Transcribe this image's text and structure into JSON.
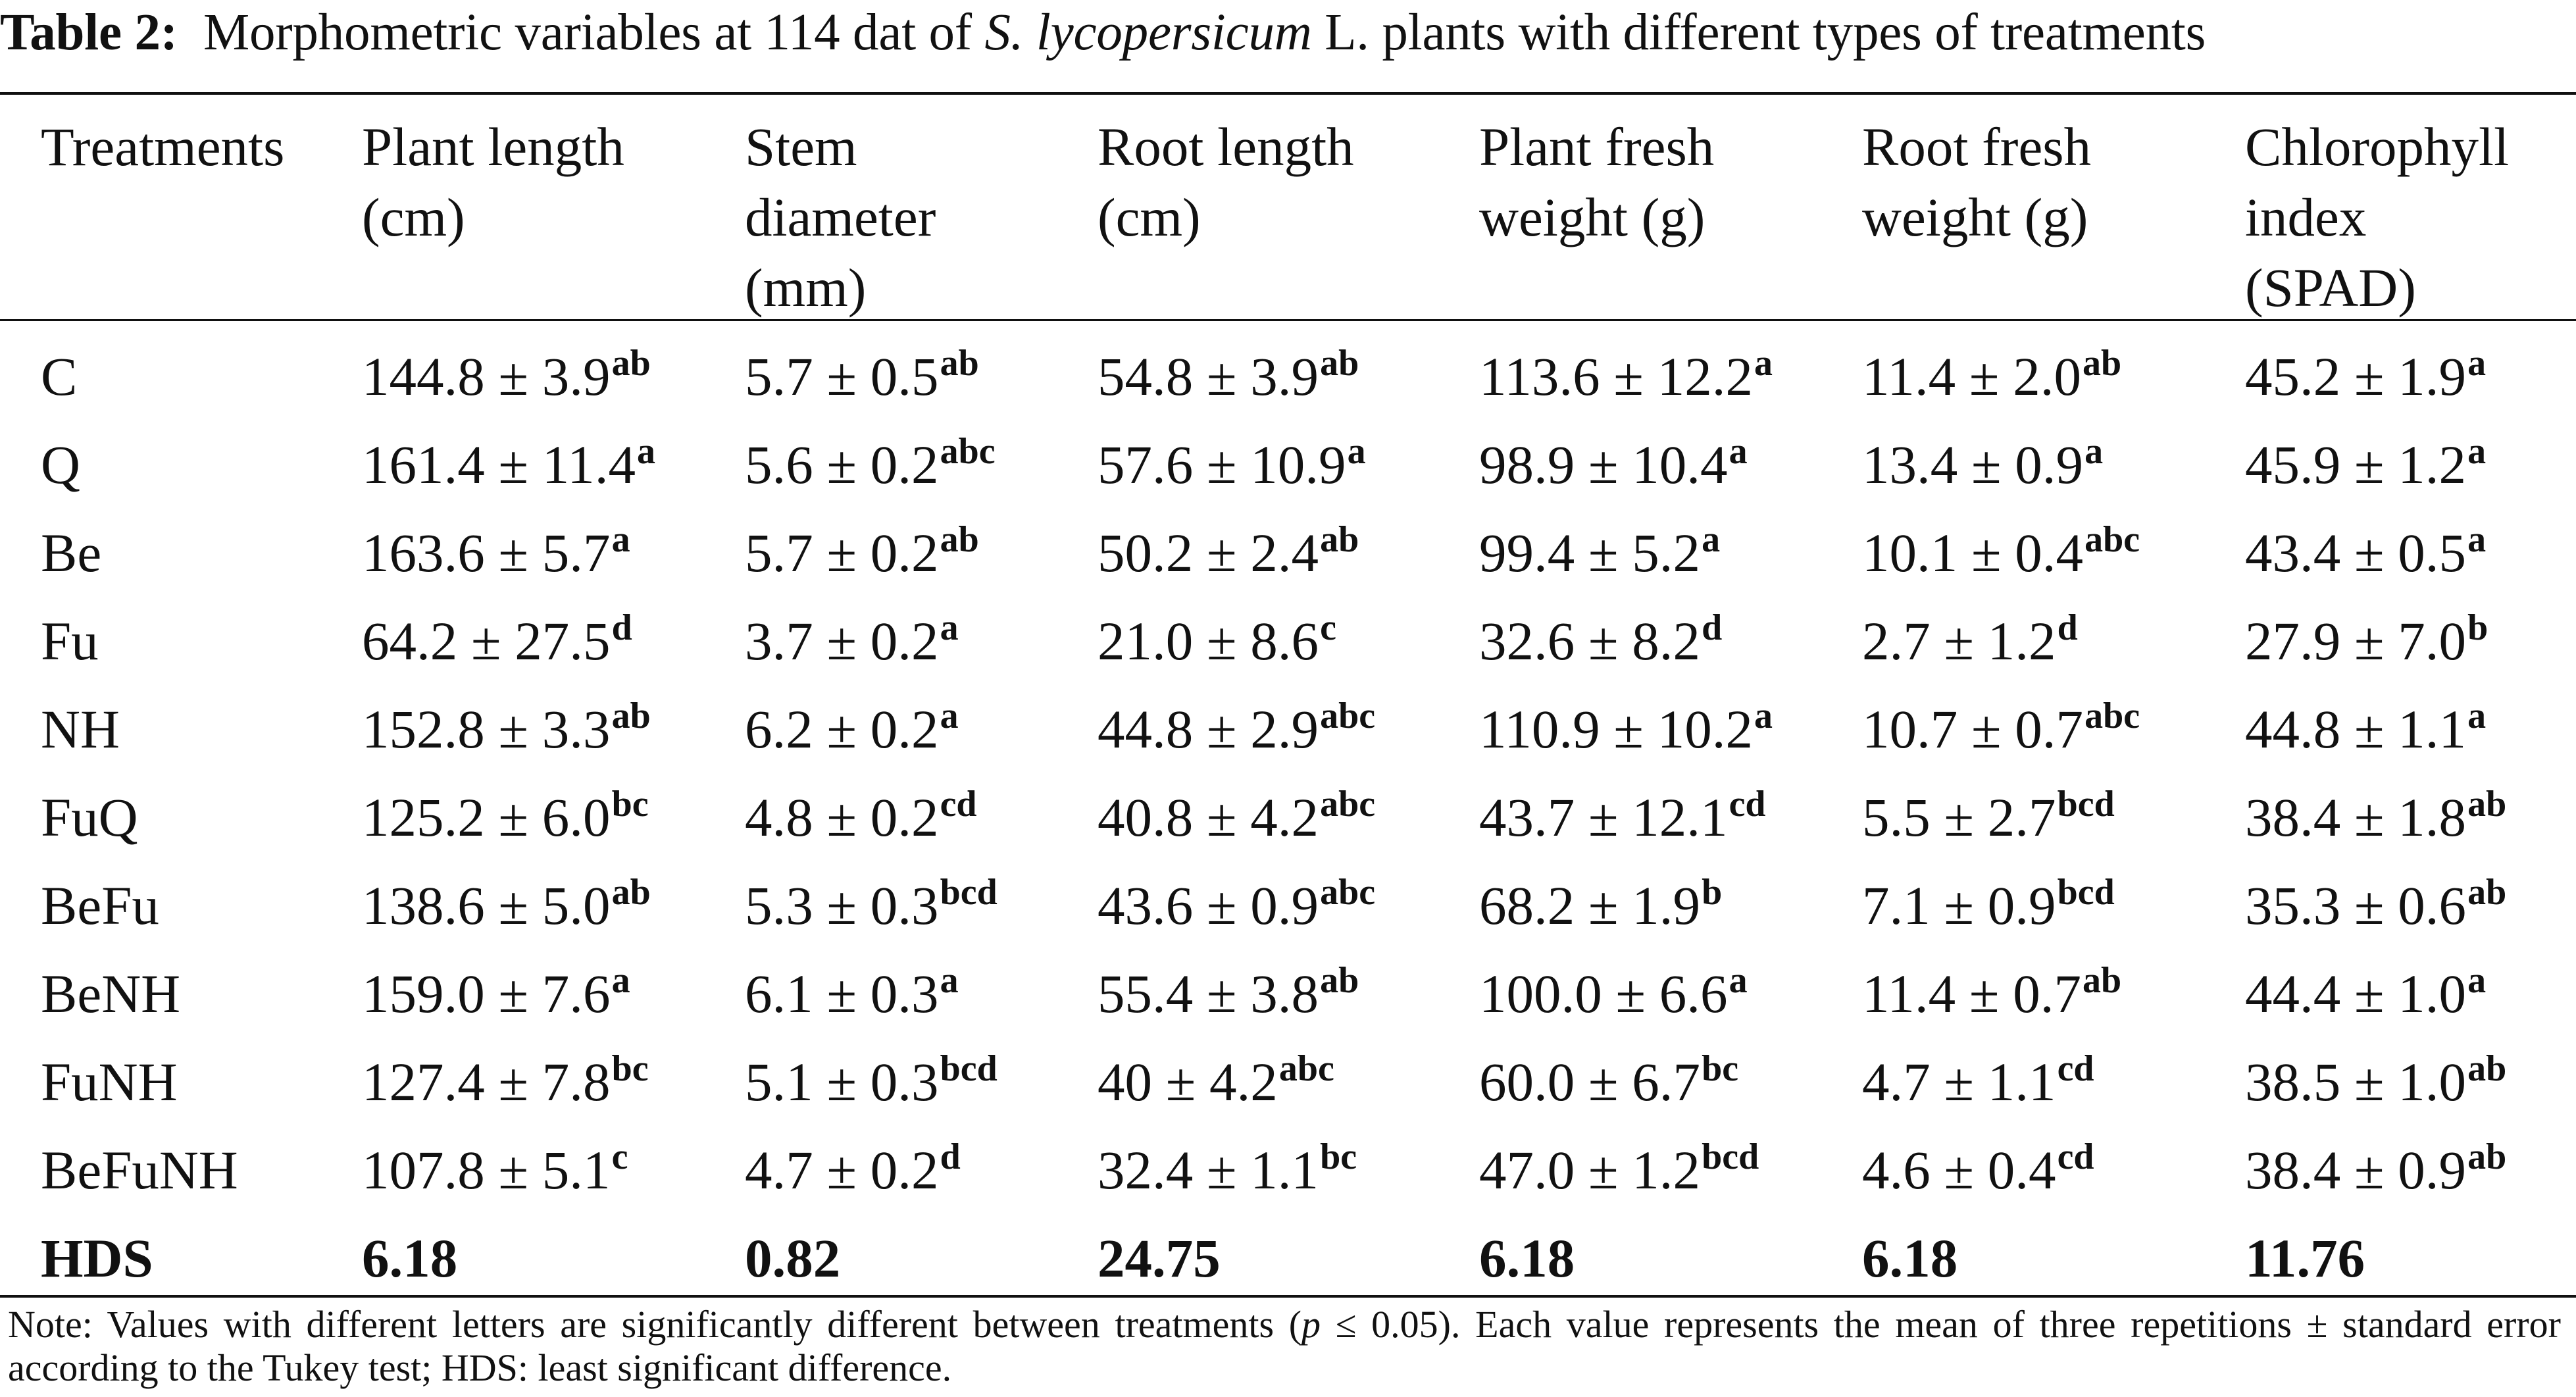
{
  "caption": {
    "label": "Table 2:",
    "text_before": "Morphometric variables at 114 dat of",
    "species": "S. lycopersicum",
    "text_after": "L. plants with different types of treatments"
  },
  "headers": [
    {
      "lines": [
        "Treatments"
      ]
    },
    {
      "lines": [
        "Plant length",
        "(cm)"
      ]
    },
    {
      "lines": [
        "Stem",
        "diameter",
        "(mm)"
      ]
    },
    {
      "lines": [
        "Root length",
        "(cm)"
      ]
    },
    {
      "lines": [
        "Plant fresh",
        "weight (g)"
      ]
    },
    {
      "lines": [
        "Root fresh",
        "weight (g)"
      ]
    },
    {
      "lines": [
        "Chlorophyll",
        "index",
        "(SPAD)"
      ]
    }
  ],
  "rows": [
    {
      "treatment": "C",
      "cells": [
        {
          "value": "144.8 ± 3.9",
          "letters": "ab"
        },
        {
          "value": "5.7 ± 0.5",
          "letters": "ab"
        },
        {
          "value": "54.8 ± 3.9",
          "letters": "ab"
        },
        {
          "value": "113.6 ± 12.2",
          "letters": "a"
        },
        {
          "value": "11.4 ± 2.0",
          "letters": "ab"
        },
        {
          "value": "45.2 ± 1.9",
          "letters": "a"
        }
      ]
    },
    {
      "treatment": "Q",
      "cells": [
        {
          "value": "161.4 ± 11.4",
          "letters": "a"
        },
        {
          "value": "5.6 ± 0.2",
          "letters": "abc"
        },
        {
          "value": "57.6 ± 10.9",
          "letters": "a"
        },
        {
          "value": "98.9 ± 10.4",
          "letters": "a"
        },
        {
          "value": "13.4 ± 0.9",
          "letters": "a"
        },
        {
          "value": "45.9 ± 1.2",
          "letters": "a"
        }
      ]
    },
    {
      "treatment": "Be",
      "cells": [
        {
          "value": "163.6 ± 5.7",
          "letters": "a"
        },
        {
          "value": "5.7 ± 0.2",
          "letters": "ab"
        },
        {
          "value": "50.2 ± 2.4",
          "letters": "ab"
        },
        {
          "value": "99.4 ± 5.2",
          "letters": "a"
        },
        {
          "value": "10.1 ± 0.4",
          "letters": "abc"
        },
        {
          "value": "43.4 ± 0.5",
          "letters": "a"
        }
      ]
    },
    {
      "treatment": "Fu",
      "cells": [
        {
          "value": "64.2 ± 27.5",
          "letters": "d"
        },
        {
          "value": "3.7 ± 0.2",
          "letters": "a"
        },
        {
          "value": "21.0 ± 8.6",
          "letters": "c"
        },
        {
          "value": "32.6 ± 8.2",
          "letters": "d"
        },
        {
          "value": "2.7 ± 1.2",
          "letters": "d"
        },
        {
          "value": "27.9 ± 7.0",
          "letters": "b"
        }
      ]
    },
    {
      "treatment": "NH",
      "cells": [
        {
          "value": "152.8 ± 3.3",
          "letters": "ab"
        },
        {
          "value": "6.2 ± 0.2",
          "letters": "a"
        },
        {
          "value": "44.8 ± 2.9",
          "letters": "abc"
        },
        {
          "value": "110.9 ± 10.2",
          "letters": "a"
        },
        {
          "value": "10.7 ± 0.7",
          "letters": "abc"
        },
        {
          "value": "44.8 ± 1.1",
          "letters": "a"
        }
      ]
    },
    {
      "treatment": "FuQ",
      "cells": [
        {
          "value": "125.2 ± 6.0",
          "letters": "bc"
        },
        {
          "value": "4.8 ± 0.2",
          "letters": "cd"
        },
        {
          "value": "40.8 ± 4.2",
          "letters": "abc"
        },
        {
          "value": "43.7 ± 12.1",
          "letters": "cd"
        },
        {
          "value": "5.5 ± 2.7",
          "letters": "bcd"
        },
        {
          "value": "38.4 ± 1.8",
          "letters": "ab"
        }
      ]
    },
    {
      "treatment": "BeFu",
      "cells": [
        {
          "value": "138.6 ± 5.0",
          "letters": "ab"
        },
        {
          "value": "5.3 ± 0.3",
          "letters": "bcd"
        },
        {
          "value": "43.6 ± 0.9",
          "letters": "abc"
        },
        {
          "value": "68.2 ± 1.9",
          "letters": "b"
        },
        {
          "value": "7.1 ± 0.9",
          "letters": "bcd"
        },
        {
          "value": "35.3 ± 0.6",
          "letters": "ab"
        }
      ]
    },
    {
      "treatment": "BeNH",
      "cells": [
        {
          "value": "159.0 ± 7.6",
          "letters": "a"
        },
        {
          "value": "6.1 ± 0.3",
          "letters": "a"
        },
        {
          "value": "55.4 ± 3.8",
          "letters": "ab"
        },
        {
          "value": "100.0 ± 6.6",
          "letters": "a"
        },
        {
          "value": "11.4 ± 0.7",
          "letters": "ab"
        },
        {
          "value": "44.4 ± 1.0",
          "letters": "a"
        }
      ]
    },
    {
      "treatment": "FuNH",
      "cells": [
        {
          "value": "127.4 ± 7.8",
          "letters": "bc"
        },
        {
          "value": "5.1 ± 0.3",
          "letters": "bcd"
        },
        {
          "value": "40 ± 4.2",
          "letters": "abc"
        },
        {
          "value": "60.0 ± 6.7",
          "letters": "bc"
        },
        {
          "value": "4.7 ± 1.1",
          "letters": "cd"
        },
        {
          "value": "38.5 ± 1.0",
          "letters": "ab"
        }
      ]
    },
    {
      "treatment": "BeFuNH",
      "cells": [
        {
          "value": "107.8 ± 5.1",
          "letters": "c"
        },
        {
          "value": "4.7 ± 0.2",
          "letters": "d"
        },
        {
          "value": "32.4 ± 1.1",
          "letters": "bc"
        },
        {
          "value": "47.0 ± 1.2",
          "letters": "bcd"
        },
        {
          "value": "4.6 ± 0.4",
          "letters": "cd"
        },
        {
          "value": "38.4 ± 0.9",
          "letters": "ab"
        }
      ]
    }
  ],
  "hds": {
    "label": "HDS",
    "values": [
      "6.18",
      "0.82",
      "24.75",
      "6.18",
      "6.18",
      "11.76"
    ]
  },
  "note": {
    "before_p": "Note: Values with different letters are significantly different between treatments (",
    "p": "p",
    "after_p": " ≤ 0.05). Each value represents the mean of three repetitions ± standard error according to the Tukey test; HDS: least significant difference."
  }
}
